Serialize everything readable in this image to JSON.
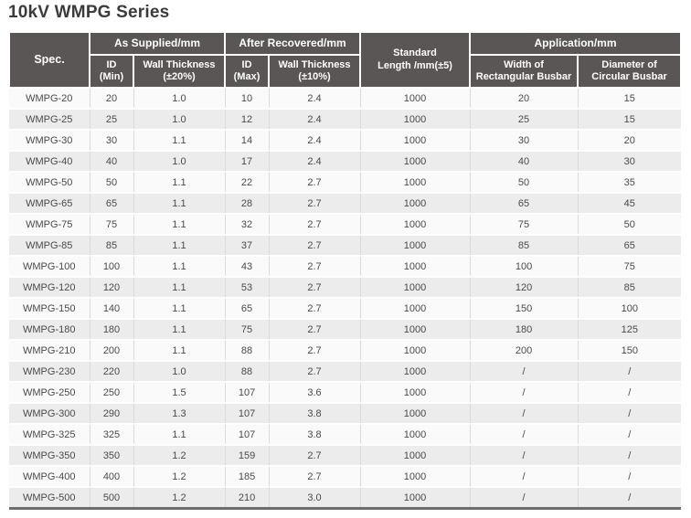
{
  "page_title": "10kV WMPG Series",
  "colors": {
    "header_bg": "#595655",
    "header_text": "#ffffff",
    "title_text": "#3b3b3b",
    "row_odd_bg": "#fafafa",
    "row_even_bg": "#ececec",
    "cell_border": "#dbdbdb",
    "table_bottom_border": "#6f6d6d",
    "body_text": "#4a4a4a"
  },
  "table": {
    "header": {
      "spec": "Spec.",
      "as_supplied_group": "As Supplied/mm",
      "after_recovered_group": "After Recovered/mm",
      "standard_length_line1": "Standard",
      "standard_length_line2": "Length /mm(±5)",
      "application_group": "Application/mm",
      "id_min_line1": "ID",
      "id_min_line2": "(Min)",
      "wall_thickness_20_line1": "Wall Thickness",
      "wall_thickness_20_line2": "(±20%)",
      "id_max_line1": "ID",
      "id_max_line2": "(Max)",
      "wall_thickness_10_line1": "Wall Thickness",
      "wall_thickness_10_line2": "(±10%)",
      "width_busbar_line1": "Width of",
      "width_busbar_line2": "Rectangular Busbar",
      "diameter_busbar_line1": "Diameter of",
      "diameter_busbar_line2": "Circular Busbar"
    },
    "col_keys": [
      "spec",
      "id-min",
      "wall-thickness-20",
      "id-max",
      "wall-thickness-10",
      "standard-length",
      "width-rectangular-busbar",
      "diameter-circular-busbar"
    ],
    "rows": [
      [
        "WMPG-20",
        "20",
        "1.0",
        "10",
        "2.4",
        "1000",
        "20",
        "15"
      ],
      [
        "WMPG-25",
        "25",
        "1.0",
        "12",
        "2.4",
        "1000",
        "25",
        "15"
      ],
      [
        "WMPG-30",
        "30",
        "1.1",
        "14",
        "2.4",
        "1000",
        "30",
        "20"
      ],
      [
        "WMPG-40",
        "40",
        "1.0",
        "17",
        "2.4",
        "1000",
        "40",
        "30"
      ],
      [
        "WMPG-50",
        "50",
        "1.1",
        "22",
        "2.7",
        "1000",
        "50",
        "35"
      ],
      [
        "WMPG-65",
        "65",
        "1.1",
        "28",
        "2.7",
        "1000",
        "65",
        "45"
      ],
      [
        "WMPG-75",
        "75",
        "1.1",
        "32",
        "2.7",
        "1000",
        "75",
        "50"
      ],
      [
        "WMPG-85",
        "85",
        "1.1",
        "37",
        "2.7",
        "1000",
        "85",
        "65"
      ],
      [
        "WMPG-100",
        "100",
        "1.1",
        "43",
        "2.7",
        "1000",
        "100",
        "75"
      ],
      [
        "WMPG-120",
        "120",
        "1.1",
        "53",
        "2.7",
        "1000",
        "120",
        "85"
      ],
      [
        "WMPG-150",
        "140",
        "1.1",
        "65",
        "2.7",
        "1000",
        "150",
        "100"
      ],
      [
        "WMPG-180",
        "180",
        "1.1",
        "75",
        "2.7",
        "1000",
        "180",
        "125"
      ],
      [
        "WMPG-210",
        "200",
        "1.1",
        "88",
        "2.7",
        "1000",
        "200",
        "150"
      ],
      [
        "WMPG-230",
        "220",
        "1.0",
        "88",
        "2.7",
        "1000",
        "/",
        "/"
      ],
      [
        "WMPG-250",
        "250",
        "1.5",
        "107",
        "3.6",
        "1000",
        "/",
        "/"
      ],
      [
        "WMPG-300",
        "290",
        "1.3",
        "107",
        "3.8",
        "1000",
        "/",
        "/"
      ],
      [
        "WMPG-325",
        "325",
        "1.1",
        "107",
        "3.8",
        "1000",
        "/",
        "/"
      ],
      [
        "WMPG-350",
        "350",
        "1.2",
        "159",
        "2.7",
        "1000",
        "/",
        "/"
      ],
      [
        "WMPG-400",
        "400",
        "1.2",
        "185",
        "2.7",
        "1000",
        "/",
        "/"
      ],
      [
        "WMPG-500",
        "500",
        "1.2",
        "210",
        "3.0",
        "1000",
        "/",
        "/"
      ]
    ]
  }
}
